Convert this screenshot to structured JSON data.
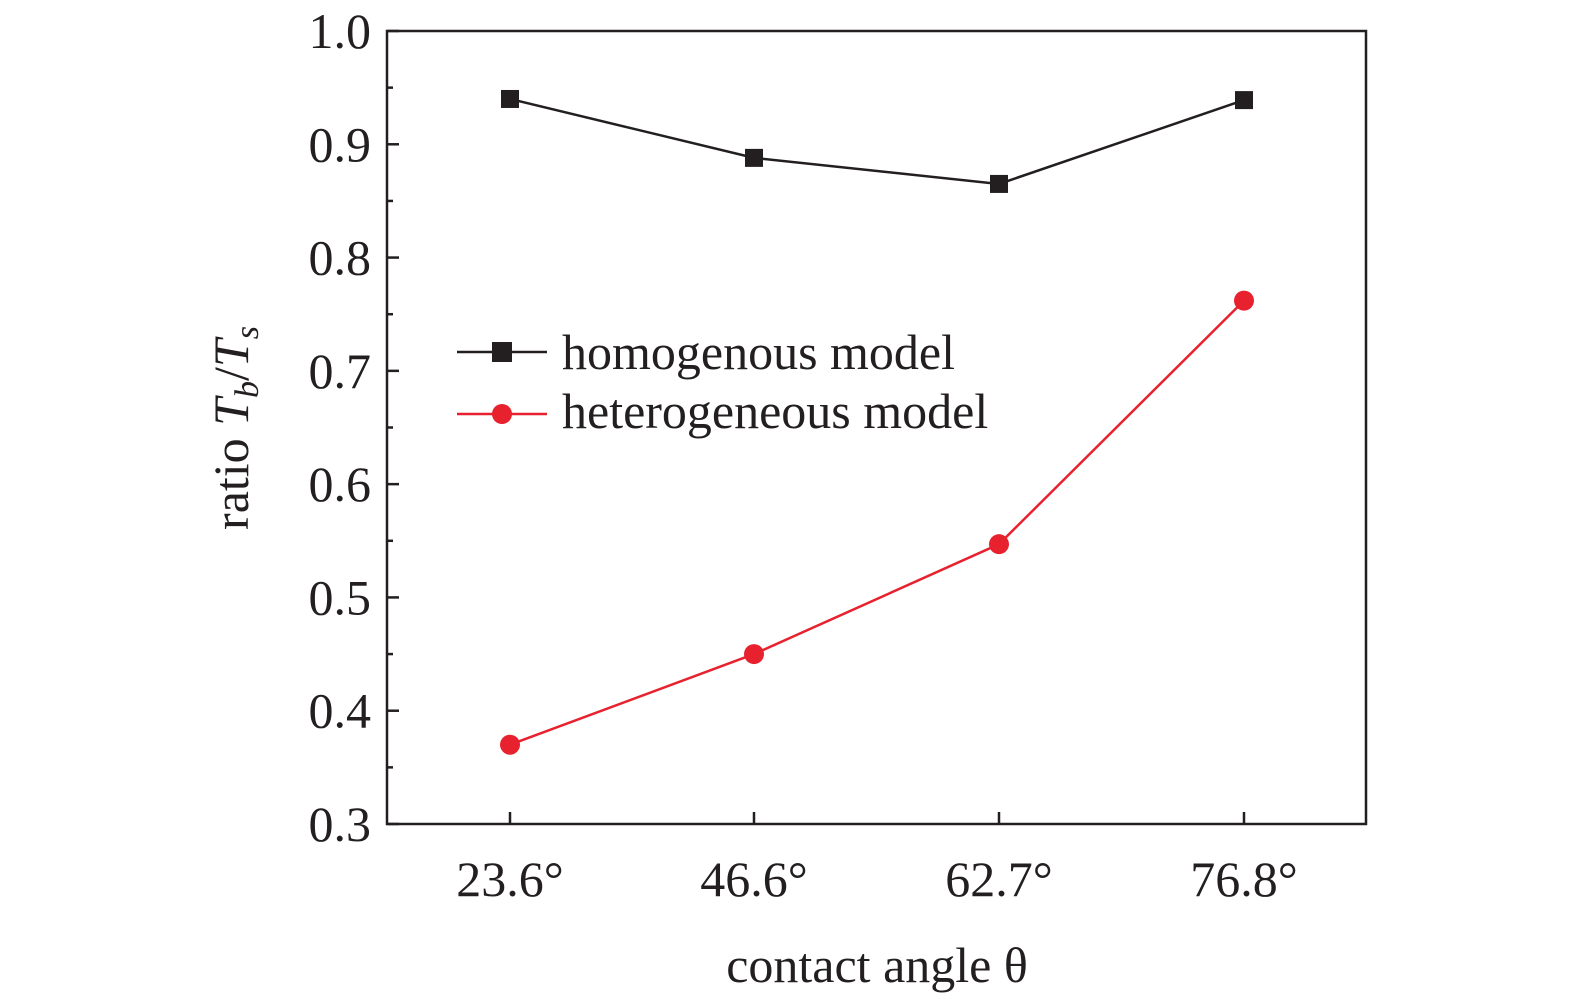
{
  "chart_data": {
    "type": "line",
    "title": "",
    "xlabel": "contact angle θ",
    "ylabel": {
      "prefix": "ratio ",
      "T": "T",
      "sub_b": "b",
      "slash": "/",
      "sub_s": "s"
    },
    "categories": [
      "23.6°",
      "46.6°",
      "62.7°",
      "76.8°"
    ],
    "ylim": [
      0.3,
      1.0
    ],
    "yticks": [
      "0.3",
      "0.4",
      "0.5",
      "0.6",
      "0.7",
      "0.8",
      "0.9",
      "1.0"
    ],
    "ytick_values": [
      0.3,
      0.4,
      0.5,
      0.6,
      0.7,
      0.8,
      0.9,
      1.0
    ],
    "legend_position": "center-left",
    "series": [
      {
        "name": "homogenous model",
        "marker": "square",
        "color": "#231f20",
        "values": [
          0.94,
          0.888,
          0.865,
          0.939
        ]
      },
      {
        "name": "heterogeneous model",
        "marker": "circle",
        "color": "#e8212f",
        "values": [
          0.37,
          0.45,
          0.547,
          0.762
        ]
      }
    ]
  }
}
